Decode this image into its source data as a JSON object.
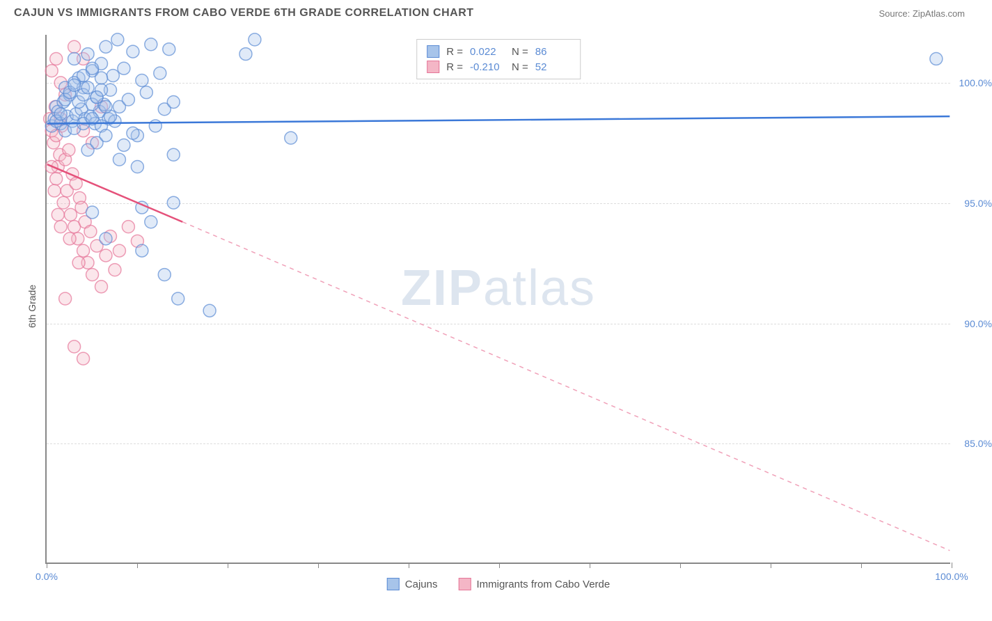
{
  "header": {
    "title": "CAJUN VS IMMIGRANTS FROM CABO VERDE 6TH GRADE CORRELATION CHART",
    "source": "Source: ZipAtlas.com"
  },
  "chart": {
    "type": "scatter",
    "y_axis_label": "6th Grade",
    "background_color": "#ffffff",
    "grid_color": "#dddddd",
    "axis_color": "#888888",
    "xlim": [
      0,
      100
    ],
    "ylim": [
      80,
      102
    ],
    "y_ticks": [
      {
        "value": 100,
        "label": "100.0%"
      },
      {
        "value": 95,
        "label": "95.0%"
      },
      {
        "value": 90,
        "label": "90.0%"
      },
      {
        "value": 85,
        "label": "85.0%"
      }
    ],
    "x_ticks": [
      {
        "value": 0,
        "label": "0.0%"
      },
      {
        "value": 10,
        "label": ""
      },
      {
        "value": 20,
        "label": ""
      },
      {
        "value": 30,
        "label": ""
      },
      {
        "value": 40,
        "label": ""
      },
      {
        "value": 50,
        "label": ""
      },
      {
        "value": 60,
        "label": ""
      },
      {
        "value": 70,
        "label": ""
      },
      {
        "value": 80,
        "label": ""
      },
      {
        "value": 90,
        "label": ""
      },
      {
        "value": 100,
        "label": "100.0%"
      }
    ],
    "marker_radius": 9,
    "marker_opacity": 0.35,
    "marker_stroke_width": 1.5,
    "series": [
      {
        "name": "Cajuns",
        "color_fill": "#a7c4ea",
        "color_stroke": "#5b8bd4",
        "R_label": "R =",
        "R": "0.022",
        "N_label": "N =",
        "N": "86",
        "trend": {
          "x1": 0,
          "y1": 98.3,
          "x2": 100,
          "y2": 98.6,
          "width": 2.5,
          "dash": "none",
          "color": "#3b78d8"
        },
        "points": [
          [
            0.5,
            98.2
          ],
          [
            0.8,
            98.5
          ],
          [
            1.0,
            99.0
          ],
          [
            1.2,
            98.8
          ],
          [
            1.5,
            98.3
          ],
          [
            1.8,
            99.2
          ],
          [
            2.0,
            98.0
          ],
          [
            2.2,
            98.6
          ],
          [
            2.5,
            99.5
          ],
          [
            2.8,
            98.4
          ],
          [
            3.0,
            101.0
          ],
          [
            3.2,
            98.7
          ],
          [
            3.5,
            100.2
          ],
          [
            3.8,
            98.9
          ],
          [
            4.0,
            99.8
          ],
          [
            4.2,
            98.5
          ],
          [
            4.5,
            101.2
          ],
          [
            4.8,
            98.6
          ],
          [
            5.0,
            100.5
          ],
          [
            5.3,
            98.3
          ],
          [
            5.5,
            99.4
          ],
          [
            5.8,
            98.8
          ],
          [
            6.0,
            100.8
          ],
          [
            6.3,
            99.1
          ],
          [
            6.5,
            101.5
          ],
          [
            6.8,
            98.5
          ],
          [
            7.0,
            99.7
          ],
          [
            7.3,
            100.3
          ],
          [
            7.5,
            98.4
          ],
          [
            7.8,
            101.8
          ],
          [
            8.0,
            99.0
          ],
          [
            8.5,
            100.6
          ],
          [
            9.0,
            99.3
          ],
          [
            9.5,
            101.3
          ],
          [
            10.0,
            97.8
          ],
          [
            10.5,
            100.1
          ],
          [
            11.0,
            99.6
          ],
          [
            11.5,
            101.6
          ],
          [
            12.0,
            98.2
          ],
          [
            12.5,
            100.4
          ],
          [
            13.0,
            98.9
          ],
          [
            13.5,
            101.4
          ],
          [
            14.0,
            99.2
          ],
          [
            8.0,
            96.8
          ],
          [
            10.0,
            96.5
          ],
          [
            14.0,
            97.0
          ],
          [
            5.0,
            94.6
          ],
          [
            10.5,
            94.8
          ],
          [
            6.5,
            93.5
          ],
          [
            11.5,
            94.2
          ],
          [
            14.0,
            95.0
          ],
          [
            10.5,
            93.0
          ],
          [
            13.0,
            92.0
          ],
          [
            14.5,
            91.0
          ],
          [
            18.0,
            90.5
          ],
          [
            23.0,
            101.8
          ],
          [
            27.0,
            97.7
          ],
          [
            22.0,
            101.2
          ],
          [
            98.5,
            101.0
          ],
          [
            3.0,
            98.1
          ],
          [
            4.0,
            98.3
          ],
          [
            5.0,
            98.5
          ],
          [
            6.0,
            98.2
          ],
          [
            7.0,
            98.6
          ],
          [
            4.5,
            97.2
          ],
          [
            5.5,
            97.5
          ],
          [
            6.5,
            97.8
          ],
          [
            8.5,
            97.4
          ],
          [
            9.5,
            97.9
          ],
          [
            2.0,
            99.8
          ],
          [
            3.0,
            100.0
          ],
          [
            4.0,
            100.3
          ],
          [
            5.0,
            100.6
          ],
          [
            6.0,
            100.2
          ],
          [
            1.0,
            98.4
          ],
          [
            1.5,
            98.7
          ],
          [
            2.0,
            99.3
          ],
          [
            2.5,
            99.6
          ],
          [
            3.0,
            99.9
          ],
          [
            3.5,
            99.2
          ],
          [
            4.0,
            99.5
          ],
          [
            4.5,
            99.8
          ],
          [
            5.0,
            99.1
          ],
          [
            5.5,
            99.4
          ],
          [
            6.0,
            99.7
          ],
          [
            6.5,
            99.0
          ]
        ]
      },
      {
        "name": "Immigrants from Cabo Verde",
        "color_fill": "#f4b6c6",
        "color_stroke": "#e57598",
        "R_label": "R =",
        "R": "-0.210",
        "N_label": "N =",
        "N": "52",
        "trend_solid": {
          "x1": 0,
          "y1": 96.6,
          "x2": 15,
          "y2": 94.2,
          "width": 2.5,
          "color": "#e5517a"
        },
        "trend_dash": {
          "x1": 15,
          "y1": 94.2,
          "x2": 100,
          "y2": 80.5,
          "width": 1.5,
          "dash": "6,6",
          "color": "#f0a0b8"
        },
        "points": [
          [
            0.3,
            98.5
          ],
          [
            0.5,
            98.0
          ],
          [
            0.7,
            97.5
          ],
          [
            0.9,
            99.0
          ],
          [
            1.0,
            96.0
          ],
          [
            1.2,
            96.5
          ],
          [
            1.4,
            97.0
          ],
          [
            1.6,
            98.2
          ],
          [
            1.8,
            95.0
          ],
          [
            2.0,
            96.8
          ],
          [
            2.2,
            95.5
          ],
          [
            2.4,
            97.2
          ],
          [
            2.6,
            94.5
          ],
          [
            2.8,
            96.2
          ],
          [
            3.0,
            94.0
          ],
          [
            3.2,
            95.8
          ],
          [
            3.4,
            93.5
          ],
          [
            3.6,
            95.2
          ],
          [
            3.8,
            94.8
          ],
          [
            4.0,
            93.0
          ],
          [
            4.2,
            94.2
          ],
          [
            4.5,
            92.5
          ],
          [
            4.8,
            93.8
          ],
          [
            5.0,
            92.0
          ],
          [
            5.5,
            93.2
          ],
          [
            6.0,
            91.5
          ],
          [
            6.5,
            92.8
          ],
          [
            7.0,
            93.6
          ],
          [
            7.5,
            92.2
          ],
          [
            8.0,
            93.0
          ],
          [
            9.0,
            94.0
          ],
          [
            10.0,
            93.4
          ],
          [
            2.0,
            91.0
          ],
          [
            3.0,
            89.0
          ],
          [
            4.0,
            88.5
          ],
          [
            1.5,
            94.0
          ],
          [
            2.5,
            93.5
          ],
          [
            3.5,
            92.5
          ],
          [
            4.0,
            98.0
          ],
          [
            5.0,
            97.5
          ],
          [
            6.0,
            99.0
          ],
          [
            0.5,
            100.5
          ],
          [
            1.0,
            101.0
          ],
          [
            1.5,
            100.0
          ],
          [
            2.0,
            99.5
          ],
          [
            1.0,
            97.8
          ],
          [
            1.5,
            98.5
          ],
          [
            0.8,
            95.5
          ],
          [
            1.2,
            94.5
          ],
          [
            0.5,
            96.5
          ],
          [
            3.0,
            101.5
          ],
          [
            4.0,
            101.0
          ]
        ]
      }
    ],
    "bottom_legend": [
      {
        "label": "Cajuns",
        "fill": "#a7c4ea",
        "stroke": "#5b8bd4"
      },
      {
        "label": "Immigrants from Cabo Verde",
        "fill": "#f4b6c6",
        "stroke": "#e57598"
      }
    ],
    "watermark": {
      "bold": "ZIP",
      "rest": "atlas"
    }
  }
}
